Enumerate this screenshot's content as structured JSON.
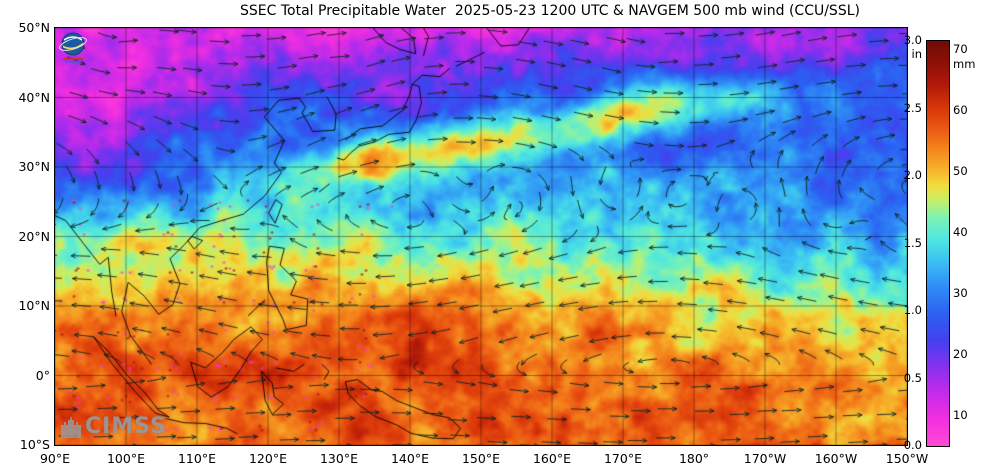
{
  "title": "SSEC Total Precipitable Water  2025-05-23 1200 UTC & NAVGEM 500 mb wind (CCU/SSL)",
  "map": {
    "lat_ticks": [
      "50°N",
      "40°N",
      "30°N",
      "20°N",
      "10°N",
      "0°",
      "10°S"
    ],
    "lon_ticks": [
      "90°E",
      "100°E",
      "110°E",
      "120°E",
      "130°E",
      "140°E",
      "150°E",
      "160°E",
      "170°E",
      "180°",
      "170°W",
      "160°W",
      "150°W"
    ]
  },
  "colorbar": {
    "unit_in": "in",
    "unit_mm": "mm",
    "in_ticks": [
      "3.0",
      "2.5",
      "2.0",
      "1.5",
      "1.0",
      "0.5",
      "0.0"
    ],
    "mm_ticks": [
      "70",
      "60",
      "50",
      "40",
      "30",
      "20",
      "10"
    ],
    "max_mm": 76.2,
    "stops": [
      {
        "mm": 0,
        "color": "#ff49d5"
      },
      {
        "mm": 5,
        "color": "#f32fe0"
      },
      {
        "mm": 10,
        "color": "#c32bea"
      },
      {
        "mm": 15,
        "color": "#8531ee"
      },
      {
        "mm": 20,
        "color": "#4341ee"
      },
      {
        "mm": 25,
        "color": "#2b62f2"
      },
      {
        "mm": 30,
        "color": "#2f8ef6"
      },
      {
        "mm": 35,
        "color": "#3cc3f2"
      },
      {
        "mm": 39,
        "color": "#4fe8e0"
      },
      {
        "mm": 43,
        "color": "#7df2b4"
      },
      {
        "mm": 46,
        "color": "#c2f06a"
      },
      {
        "mm": 49,
        "color": "#f2dc3e"
      },
      {
        "mm": 52,
        "color": "#f6b32a"
      },
      {
        "mm": 56,
        "color": "#f4831c"
      },
      {
        "mm": 60,
        "color": "#ea5512"
      },
      {
        "mm": 64,
        "color": "#d63309"
      },
      {
        "mm": 68,
        "color": "#b01a08"
      },
      {
        "mm": 72,
        "color": "#8d1007"
      },
      {
        "mm": 76.2,
        "color": "#700c06"
      }
    ]
  },
  "watermark": {
    "cimss": "CIMSS"
  },
  "icons": {
    "ssec": "ssec-globe-logo",
    "cimss": "cimss-castle-icon"
  }
}
